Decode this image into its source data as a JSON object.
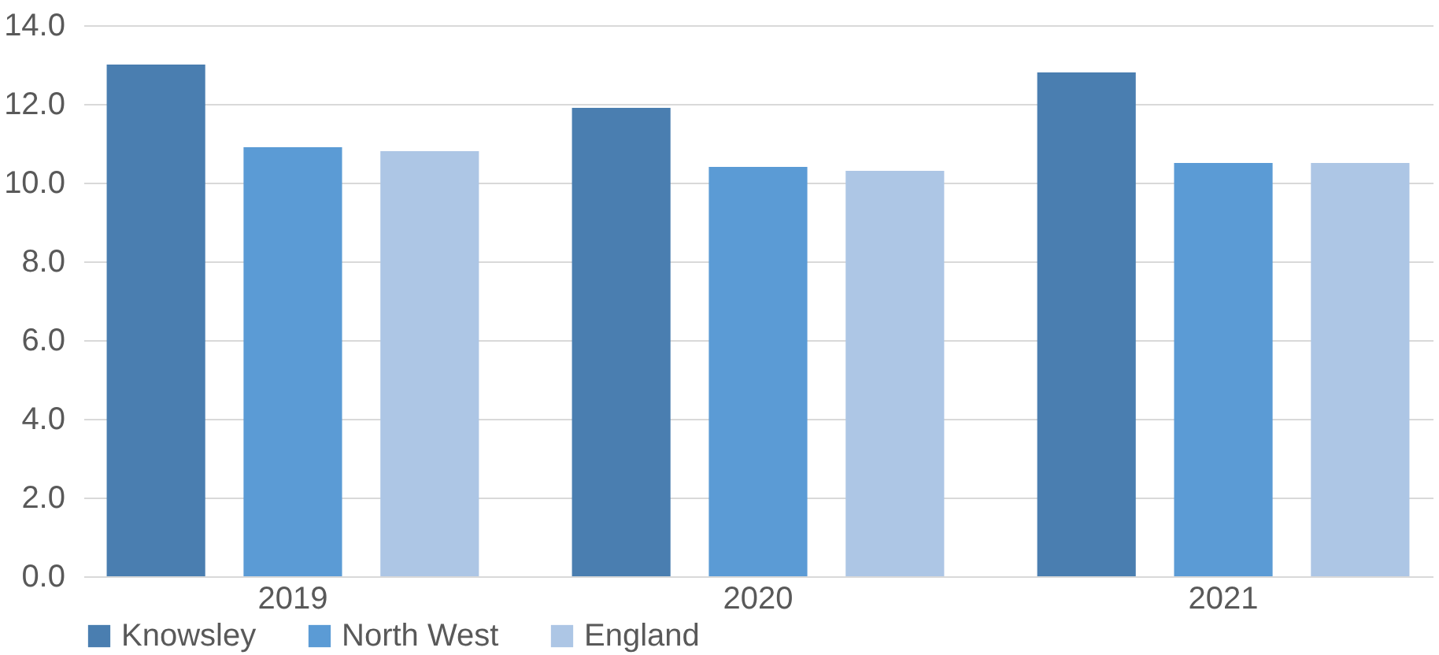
{
  "chart_data": {
    "type": "bar",
    "categories": [
      "2019",
      "2020",
      "2021"
    ],
    "series": [
      {
        "name": "Knowsley",
        "color": "#4a7eb0",
        "values": [
          13.0,
          11.9,
          12.8
        ]
      },
      {
        "name": "North West",
        "color": "#5b9bd5",
        "values": [
          10.9,
          10.4,
          10.5
        ]
      },
      {
        "name": "England",
        "color": "#adc6e5",
        "values": [
          10.8,
          10.3,
          10.5
        ]
      }
    ],
    "ylim": [
      0,
      14
    ],
    "yticks": [
      {
        "value": 0,
        "label": "0.0"
      },
      {
        "value": 2,
        "label": "2.0"
      },
      {
        "value": 4,
        "label": "4.0"
      },
      {
        "value": 6,
        "label": "6.0"
      },
      {
        "value": 8,
        "label": "8.0"
      },
      {
        "value": 10,
        "label": "10.0"
      },
      {
        "value": 12,
        "label": "12.0"
      },
      {
        "value": 14,
        "label": "14.0"
      }
    ],
    "grid": "y",
    "legend": "bottom"
  }
}
